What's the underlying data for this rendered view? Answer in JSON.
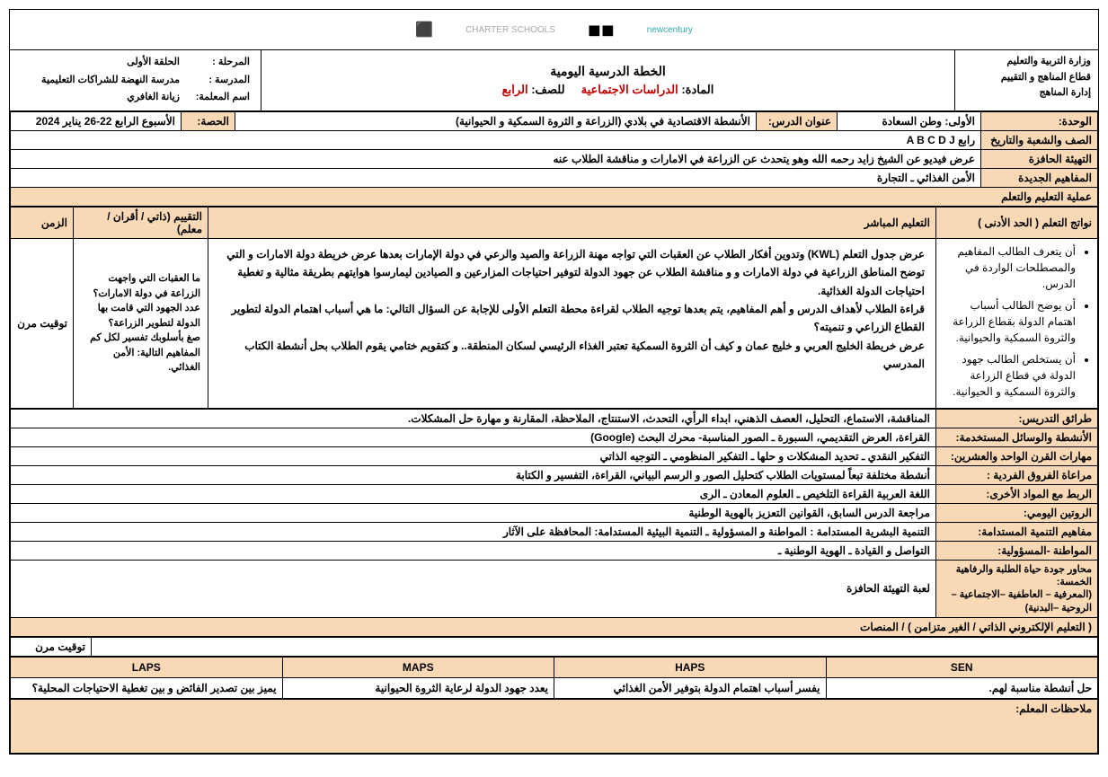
{
  "ministry": {
    "line1": "وزارة التربية والتعليم",
    "line2": "قطاع المناهج و التقييم",
    "line3": "إدارة المناهج"
  },
  "plan_title": "الخطة الدرسية اليومية",
  "subject_label": "المادة:",
  "subject_value": "الدراسات الاجتماعية",
  "grade_label": "للصف:",
  "grade_value": "الرابع",
  "school_info": {
    "stage_label": "المرحلة :",
    "stage_value": "الحلقة الأولى",
    "school_label": "المدرسة :",
    "school_value": "مدرسة النهضة للشراكات التعليمية",
    "teacher_label": "اسم المعلمة:",
    "teacher_value": "زيانة الغافري"
  },
  "row1": {
    "unit_label": "الوحدة:",
    "unit_value": "الأولى: وطن السعادة",
    "lesson_label": "عنوان الدرس:",
    "lesson_value": "الأنشطة الاقتصادية في بلادي (الزراعة و الثروة السمكية و الحيوانية)",
    "period_label": "الحصة:",
    "week_value": "الأسبوع الرابع 22-26 يناير 2024"
  },
  "grade_section": {
    "label": "الصف والشعبة والتاريخ",
    "value": "رابع A B C D J"
  },
  "warmup": {
    "label": "التهيئة الحافزة",
    "value": "عرض فيديو عن الشيخ زايد رحمه الله وهو يتحدث عن الزراعة في الامارات و مناقشة الطلاب عنه"
  },
  "concepts": {
    "label": "المفاهيم الجديدة",
    "value": "الأمن الغذائي ـ التجارة"
  },
  "process_header": "عملية التعليم والتعلم",
  "outcomes": {
    "label": "نواتج التعلم ( الحد الأدنى )",
    "items": [
      "أن يتعرف الطالب المفاهيم والمصطلحات الواردة في الدرس.",
      "أن يوضح الطالب أسباب اهتمام الدولة بقطاع الزراعة والثروة السمكية والحيوانية.",
      "أن يستخلص الطالب جهود الدولة في قطاع الزراعة والثروة السمكية و الحيوانية."
    ]
  },
  "direct_teaching": {
    "label": "التعليم المباشر",
    "content": "عرض جدول التعلم (KWL) وتدوين أفكار الطلاب عن العقبات التي تواجه مهنة الزراعة والصيد والرعي في دولة الإمارات بعدها عرض خريطة دولة الامارات و التي توضح المناطق الزراعية في دولة الامارات و و مناقشة الطلاب عن جهود الدولة لتوفير احتياجات المزارعين و الصيادين ليمارسوا هوايتهم بطريقة مثالية و تغطية احتياجات الدولة الغذائية.\nقراءة الطلاب لأهداف الدرس و أهم المفاهيم، يتم بعدها توجيه الطلاب لقراءة محطة التعلم الأولى للإجابة عن السؤال التالي: ما هي أسباب اهتمام الدولة لتطوير القطاع الزراعي و تنميته؟\nعرض خريطة الخليج العربي و خليج عمان و كيف أن الثروة السمكية تعتبر الغذاء الرئيسي لسكان المنطقة.. و كتقويم ختامي يقوم الطلاب بحل أنشطة الكتاب المدرسي"
  },
  "assessment": {
    "label": "التقييم (ذاتي / أقران / معلم)",
    "content": "ما العقبات التي واجهت الزراعة في دولة الامارات؟\nعدد الجهود التي قامت بها الدولة لتطوير الزراعة؟\nصغ بأسلوبك تفسير لكل كم المفاهيم التالية: الأمن الغذائي."
  },
  "time": {
    "label": "الزمن",
    "value": "توقيت مرن"
  },
  "methods": {
    "label": "طرائق التدريس:",
    "value": "المناقشة، الاستماع، التحليل، العصف الذهني، ابداء الرأي، التحدث، الاستنتاج، الملاحظة، المقارنة و مهارة حل المشكلات."
  },
  "activities": {
    "label": "الأنشطة والوسائل المستخدمة:",
    "value": "القراءة، العرض التقديمي، السبورة ـ الصور المناسبة- محرك البحث (Google)"
  },
  "skills21": {
    "label": "مهارات القرن الواحد والعشرين:",
    "value": "التفكير النقدي ـ تحديد المشكلات و حلها ـ التفكير المنظومي ـ التوجيه الذاتي"
  },
  "differentiation_ind": {
    "label": "مراعاة الفروق الفردية :",
    "value": "أنشطة مختلفة تبعاً لمستويات الطلاب كتحليل الصور و الرسم البياني، القراءة، التفسير و الكتابة"
  },
  "integration": {
    "label": "الربط مع المواد الأخرى:",
    "value": "اللغة العربية القراءة التلخيص ـ العلوم المعادن ـ الرى"
  },
  "routine": {
    "label": "الروتين اليومي:",
    "value": "مراجعة الدرس السابق، القوانين التعزيز بالهوية الوطنية"
  },
  "sustainability": {
    "label": "مفاهيم التنمية المستدامة:",
    "value": "التنمية البشرية المستدامة : المواطنة و المسؤولية ـ التنمية البيئية المستدامة: المحافظة على الآثار"
  },
  "citizenship": {
    "label": "المواطنة -المسؤولية:",
    "value": "التواصل و القيادة ـ الهوية الوطنية ـ"
  },
  "wellbeing": {
    "label": "محاور جودة حياة الطلبة والرفاهية الخمسة:\n(المعرفية – العاطفية –الاجتماعية – الروحية –البدنية)",
    "value": "لعبة التهيئة الحافزة"
  },
  "elearning_header": "( التعليم الإلكتروني الذاتي / الغير متزامن ) / المنصات",
  "elearning_time": "توقيت مرن",
  "diff": {
    "sen": {
      "header": "SEN",
      "value": "حل أنشطة مناسبة لهم."
    },
    "haps": {
      "header": "HAPS",
      "value": "يفسر أسباب اهتمام الدولة بتوفير الأمن الغذائي"
    },
    "maps": {
      "header": "MAPS",
      "value": "يعدد جهود الدولة لرعاية الثروة الحيوانية"
    },
    "laps": {
      "header": "LAPS",
      "value": "يميز بين تصدير الفائض و بين تغطية الاحتياجات المحلية؟"
    }
  },
  "notes_label": "ملاحظات المعلم:",
  "logos": {
    "l1": "newcentury",
    "l2": "◼◼",
    "l3": "CHARTER SCHOOLS",
    "l4": "⬛"
  }
}
